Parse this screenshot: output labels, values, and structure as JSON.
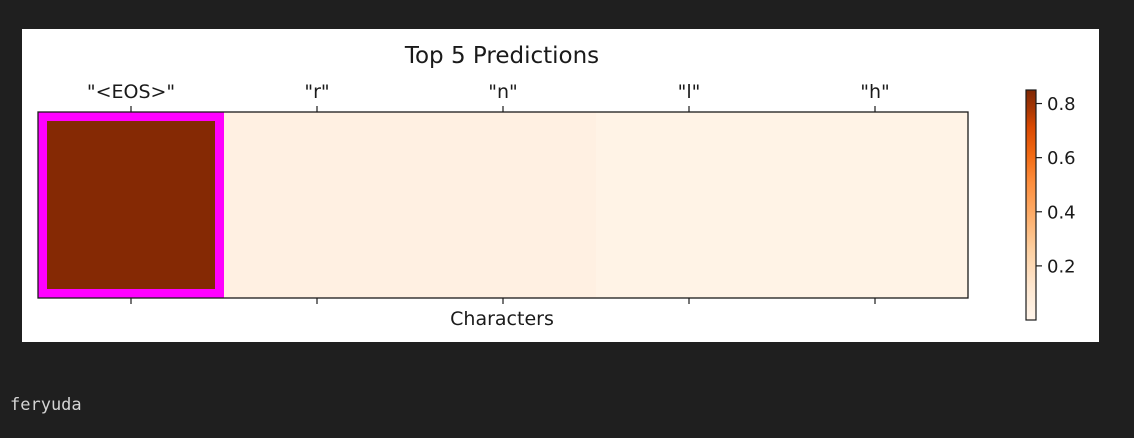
{
  "chart_data": {
    "type": "heatmap",
    "title": "Top 5 Predictions",
    "xlabel": "Characters",
    "ylabel": "",
    "categories": [
      "\"<EOS>\"",
      "\"r\"",
      "\"n\"",
      "\"l\"",
      "\"h\""
    ],
    "values": [
      0.84,
      0.04,
      0.04,
      0.02,
      0.02
    ],
    "highlighted_index": 0,
    "highlight_color": "#ff00ff",
    "colormap": "Oranges",
    "colorbar": {
      "range": [
        0.0,
        0.85
      ],
      "ticks": [
        0.2,
        0.4,
        0.6,
        0.8
      ],
      "tick_labels": [
        "0.2",
        "0.4",
        "0.6",
        "0.8"
      ]
    },
    "grid": false,
    "x_tick_position": "top"
  },
  "output": {
    "text": "feryuda"
  }
}
